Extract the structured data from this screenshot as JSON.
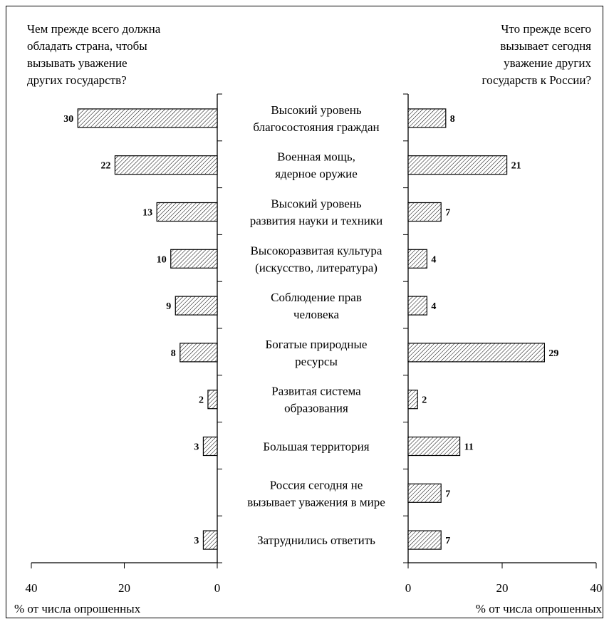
{
  "chart_data": {
    "type": "bar",
    "orientation": "horizontal",
    "layout": "butterfly",
    "categories": [
      [
        "Высокий уровень",
        "благосостояния граждан"
      ],
      [
        "Военная мощь,",
        "ядерное оружие"
      ],
      [
        "Высокий уровень",
        "развития науки и техники"
      ],
      [
        "Высокоразвитая культура",
        "(искусство, литература)"
      ],
      [
        "Соблюдение прав",
        "человека"
      ],
      [
        "Богатые природные",
        "ресурсы"
      ],
      [
        "Развитая система",
        "образования"
      ],
      [
        "Большая территория"
      ],
      [
        "Россия сегодня не",
        "вызывает уважения в мире"
      ],
      [
        "Затруднились ответить"
      ]
    ],
    "series": [
      {
        "name": "Чем прежде всего должна обладать страна, чтобы вызывать уважение других государств?",
        "title_lines": [
          "Чем прежде всего должна",
          "обладать страна, чтобы",
          "вызывать уважение",
          "других государств?"
        ],
        "side": "left",
        "values": [
          30,
          22,
          13,
          10,
          9,
          8,
          2,
          3,
          null,
          3
        ]
      },
      {
        "name": "Что прежде всего вызывает сегодня уважение других государств к России?",
        "title_lines": [
          "Что прежде всего",
          "вызывает сегодня",
          "уважение других",
          "государств к России?"
        ],
        "side": "right",
        "values": [
          8,
          21,
          7,
          4,
          4,
          29,
          2,
          11,
          7,
          7
        ]
      }
    ],
    "xlabel": "% от числа опрошенных",
    "xlim": [
      0,
      40
    ],
    "xticks": [
      0,
      20,
      40
    ],
    "fill": "diagonal-hatch",
    "bar_color": "#000000",
    "grid": false
  }
}
